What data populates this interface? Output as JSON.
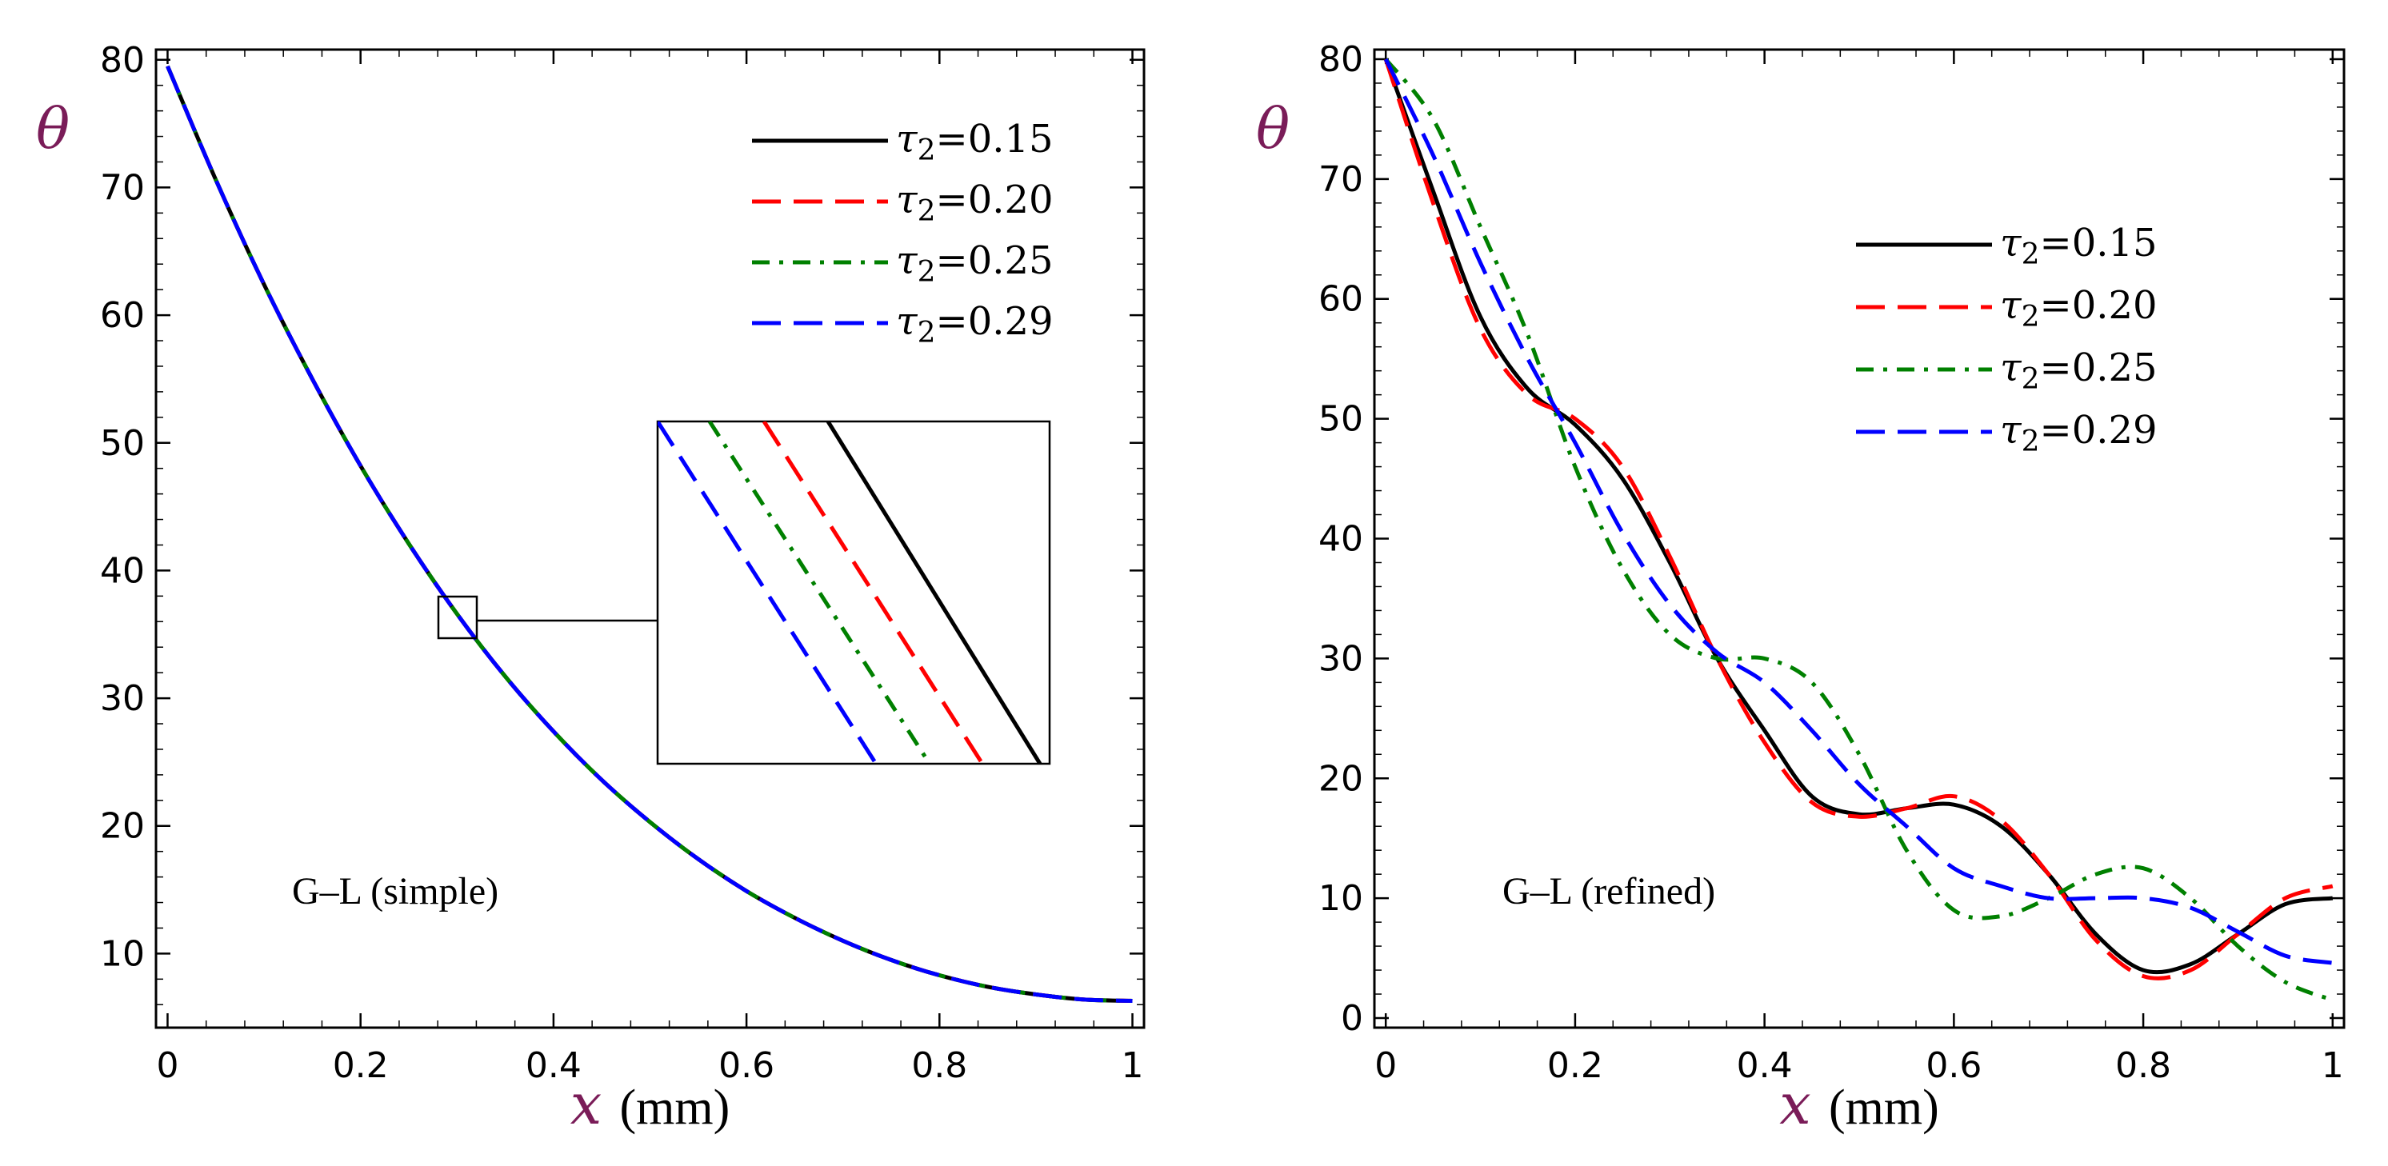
{
  "chart_data": [
    {
      "type": "line",
      "panel": "left",
      "annotation": "G–L (simple)",
      "xlabel_var": "x",
      "xlabel_unit": "(mm)",
      "ylabel": "θ",
      "xlim": [
        0,
        1
      ],
      "ylim": [
        5,
        80
      ],
      "xticks": [
        0,
        0.2,
        0.4,
        0.6,
        0.8,
        1
      ],
      "xtick_labels": [
        "0",
        "0.2",
        "0.4",
        "0.6",
        "0.8",
        "1"
      ],
      "yticks": [
        10,
        20,
        30,
        40,
        50,
        60,
        70,
        80
      ],
      "ytick_labels": [
        "10",
        "20",
        "30",
        "40",
        "50",
        "60",
        "70",
        "80"
      ],
      "legend_position": "top-right",
      "inset": "zoom of the curves near x = 0.3, θ ≈ 36",
      "x": [
        0,
        0.05,
        0.1,
        0.15,
        0.2,
        0.25,
        0.3,
        0.35,
        0.4,
        0.45,
        0.5,
        0.55,
        0.6,
        0.65,
        0.7,
        0.75,
        0.8,
        0.85,
        0.9,
        0.95,
        1
      ],
      "series": [
        {
          "name": "τ2=0.15",
          "color": "#000000",
          "dash": "solid",
          "values": [
            79.5,
            70.6,
            62.4,
            55.0,
            48.2,
            42.1,
            36.6,
            31.7,
            27.4,
            23.6,
            20.3,
            17.4,
            14.9,
            12.8,
            11.0,
            9.5,
            8.3,
            7.4,
            6.8,
            6.4,
            6.3
          ]
        },
        {
          "name": "τ2=0.20",
          "color": "#ff0000",
          "dash": "longdash",
          "values": [
            79.5,
            70.6,
            62.4,
            55.0,
            48.2,
            42.1,
            36.6,
            31.7,
            27.4,
            23.6,
            20.3,
            17.4,
            14.9,
            12.8,
            11.0,
            9.5,
            8.3,
            7.4,
            6.8,
            6.4,
            6.3
          ]
        },
        {
          "name": "τ2=0.25",
          "color": "#008000",
          "dash": "dashdot",
          "values": [
            79.5,
            70.6,
            62.4,
            55.0,
            48.2,
            42.1,
            36.6,
            31.7,
            27.4,
            23.6,
            20.3,
            17.4,
            14.9,
            12.8,
            11.0,
            9.5,
            8.3,
            7.4,
            6.8,
            6.4,
            6.3
          ]
        },
        {
          "name": "τ2=0.29",
          "color": "#0000ff",
          "dash": "longdash",
          "values": [
            79.5,
            70.6,
            62.4,
            55.0,
            48.2,
            42.1,
            36.6,
            31.7,
            27.4,
            23.6,
            20.3,
            17.4,
            14.9,
            12.8,
            11.0,
            9.5,
            8.3,
            7.4,
            6.8,
            6.4,
            6.3
          ]
        }
      ]
    },
    {
      "type": "line",
      "panel": "right",
      "annotation": "G–L (refined)",
      "xlabel_var": "x",
      "xlabel_unit": "(mm)",
      "ylabel": "θ",
      "xlim": [
        0,
        1
      ],
      "ylim": [
        0,
        80
      ],
      "xticks": [
        0,
        0.2,
        0.4,
        0.6,
        0.8,
        1
      ],
      "xtick_labels": [
        "0",
        "0.2",
        "0.4",
        "0.6",
        "0.8",
        "1"
      ],
      "yticks": [
        0,
        10,
        20,
        30,
        40,
        50,
        60,
        70,
        80
      ],
      "ytick_labels": [
        "0",
        "10",
        "20",
        "30",
        "40",
        "50",
        "60",
        "70",
        "80"
      ],
      "legend_position": "upper-right",
      "x": [
        0,
        0.05,
        0.1,
        0.15,
        0.2,
        0.25,
        0.3,
        0.35,
        0.4,
        0.45,
        0.5,
        0.55,
        0.6,
        0.65,
        0.7,
        0.75,
        0.8,
        0.85,
        0.9,
        0.95,
        1
      ],
      "series": [
        {
          "name": "τ2=0.15",
          "color": "#000000",
          "dash": "solid",
          "values": [
            80,
            69,
            58.5,
            52.5,
            49.5,
            45,
            38,
            30,
            24,
            18.5,
            17,
            17.5,
            17.8,
            16,
            12,
            7,
            4,
            4.5,
            7,
            9.5,
            10
          ]
        },
        {
          "name": "τ2=0.20",
          "color": "#ff0000",
          "dash": "longdash",
          "values": [
            80,
            68,
            57.5,
            52,
            50,
            46,
            38.5,
            30,
            23,
            18,
            16.8,
            17.5,
            18.5,
            16.5,
            12,
            6.5,
            3.5,
            4,
            7,
            10,
            11
          ]
        },
        {
          "name": "τ2=0.25",
          "color": "#008000",
          "dash": "dashdot",
          "values": [
            80,
            75,
            66,
            57,
            46,
            37.5,
            32,
            30,
            30,
            28,
            22,
            14,
            9,
            8.5,
            10,
            12,
            12.5,
            10,
            6,
            3,
            1.5
          ]
        },
        {
          "name": "τ2=0.29",
          "color": "#0000ff",
          "dash": "longdash",
          "values": [
            80,
            72,
            63,
            55,
            48,
            40.5,
            34.5,
            30.5,
            28,
            24,
            19.5,
            16,
            12.5,
            11,
            10,
            10,
            10,
            9.2,
            7.2,
            5.2,
            4.6
          ]
        }
      ]
    }
  ]
}
